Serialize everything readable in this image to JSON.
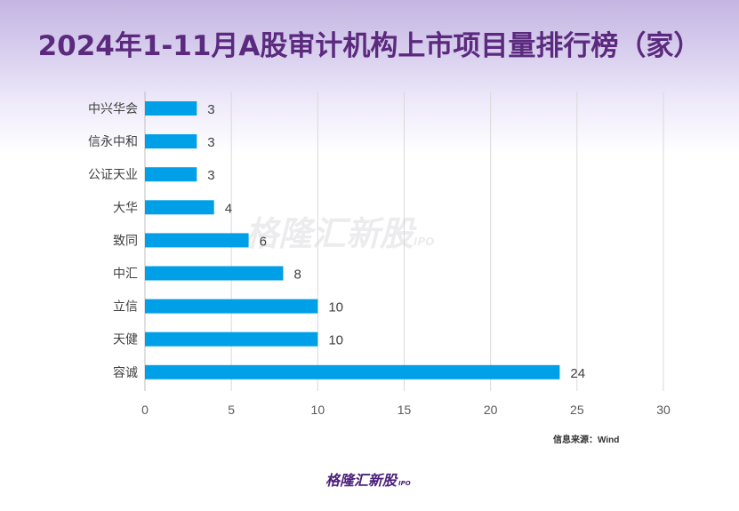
{
  "chart_data": {
    "type": "bar",
    "orientation": "horizontal",
    "title": "2024年1-11月A股审计机构上市项目量排行榜（家）",
    "categories": [
      "中兴华会",
      "信永中和",
      "公证天业",
      "大华",
      "致同",
      "中汇",
      "立信",
      "天健",
      "容诚"
    ],
    "values": [
      3,
      3,
      3,
      4,
      6,
      8,
      10,
      10,
      24
    ],
    "xlim": [
      0,
      30
    ],
    "xticks": [
      0,
      5,
      10,
      15,
      20,
      25,
      30
    ],
    "grid": true,
    "bar_color": "#00a0e9",
    "xlabel": "",
    "ylabel": ""
  },
  "source": "信息来源：Wind",
  "logo": {
    "text": "格隆汇新股",
    "sub": "IPO"
  }
}
